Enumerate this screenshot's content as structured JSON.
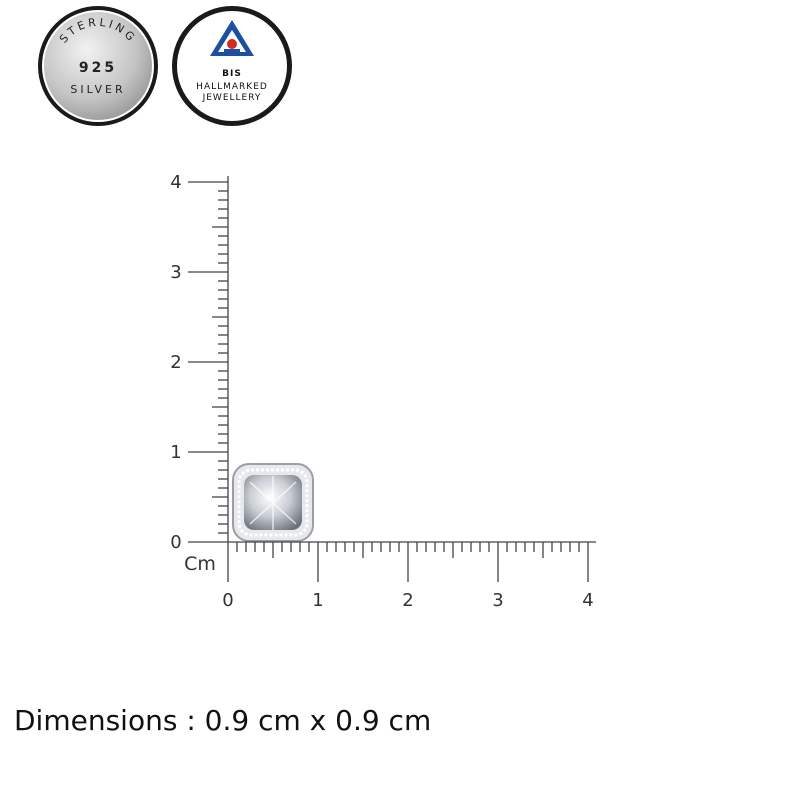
{
  "badges": {
    "silver": {
      "top": "STERLING",
      "middle": "925",
      "bottom": "SILVER"
    },
    "bis": {
      "title": "BIS",
      "line1": "HALLMARKED",
      "line2": "JEWELLERY"
    }
  },
  "ruler": {
    "unit": "Cm",
    "x_labels": [
      "0",
      "1",
      "2",
      "3",
      "4"
    ],
    "y_labels": [
      "0",
      "1",
      "2",
      "3",
      "4"
    ]
  },
  "caption": "Dimensions : 0.9 cm x 0.9 cm"
}
